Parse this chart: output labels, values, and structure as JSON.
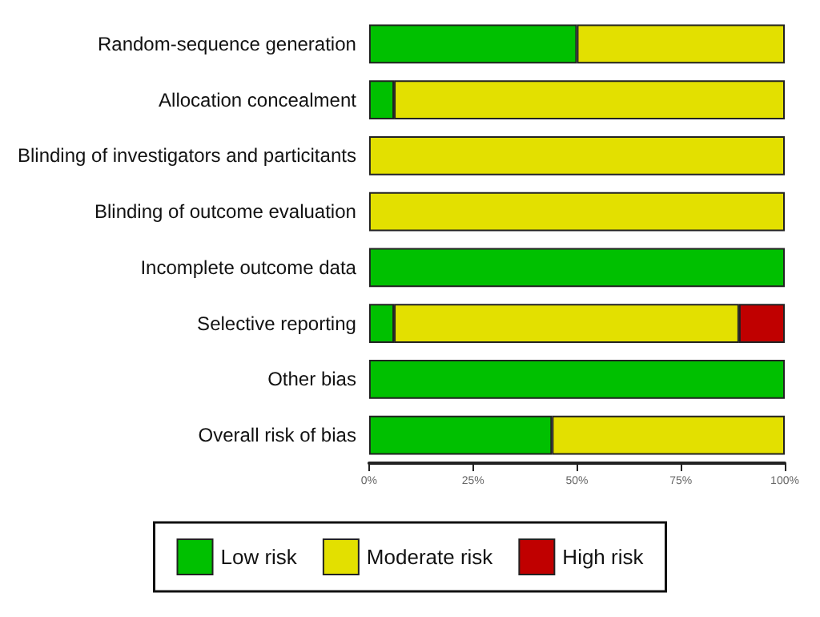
{
  "chart_data": {
    "type": "bar",
    "orientation": "horizontal",
    "stacked": true,
    "categories": [
      "Random-sequence generation",
      "Allocation concealment",
      "Blinding of investigators and particitants",
      "Blinding of outcome evaluation",
      "Incomplete outcome data",
      "Selective reporting",
      "Other bias",
      "Overall risk of bias"
    ],
    "series": [
      {
        "name": "Low risk",
        "color": "#00c000",
        "values": [
          50,
          6,
          0,
          0,
          100,
          6,
          100,
          44
        ]
      },
      {
        "name": "Moderate risk",
        "color": "#e3e000",
        "values": [
          50,
          94,
          100,
          100,
          0,
          83,
          0,
          56
        ]
      },
      {
        "name": "High risk",
        "color": "#c00000",
        "values": [
          0,
          0,
          0,
          0,
          0,
          11,
          0,
          0
        ]
      }
    ],
    "xlim": [
      0,
      100
    ],
    "xticks": [
      {
        "value": 0,
        "label": "0%"
      },
      {
        "value": 25,
        "label": "25%"
      },
      {
        "value": 50,
        "label": "50%"
      },
      {
        "value": 75,
        "label": "75%"
      },
      {
        "value": 100,
        "label": "100%"
      }
    ],
    "legend": "bottom"
  }
}
